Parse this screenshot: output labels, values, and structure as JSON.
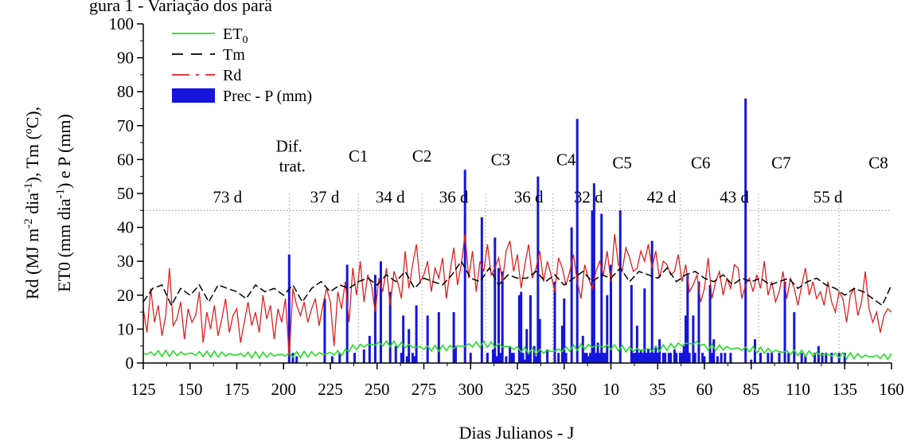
{
  "chart_data": {
    "type": "bar+line",
    "top_text": "gura 1 - Variação dos parâ",
    "xlabel": "Dias Julianos - J",
    "ylabel_line1": "Rd (MJ m",
    "ylabel_sup1": "-2",
    "ylabel_mid1": " dia",
    "ylabel_sup2": "-1",
    "ylabel_end1": "), Tm (ºC),",
    "ylabel_line2": "ET0 (mm dia",
    "ylabel_sup3": "-1",
    "ylabel_end2": ") e P (mm)",
    "ylim": [
      0,
      100
    ],
    "yticks": [
      "0",
      "10",
      "20",
      "30",
      "40",
      "50",
      "60",
      "70",
      "80",
      "90",
      "100"
    ],
    "xticks": [
      "125",
      "150",
      "175",
      "200",
      "225",
      "250",
      "275",
      "300",
      "325",
      "350",
      "10",
      "35",
      "60",
      "85",
      "110",
      "135",
      "160"
    ],
    "xticks_day_index": [
      0,
      25,
      50,
      75,
      100,
      125,
      150,
      175,
      200,
      225,
      250,
      275,
      300,
      325,
      350,
      375,
      400
    ],
    "x_range_day_index": [
      0,
      400
    ],
    "legend": {
      "placement": "top-left",
      "items": [
        {
          "label": "ET",
          "sub": "0",
          "style": "line",
          "color": "#22dd22"
        },
        {
          "label": "Tm",
          "style": "dashed",
          "color": "#000000"
        },
        {
          "label": "Rd",
          "style": "dash-red",
          "color": "#e02020"
        },
        {
          "label": "Prec - P (mm)",
          "style": "bar",
          "color": "#1515dd"
        }
      ]
    },
    "reference_line_y": 45,
    "cycle_boundaries_day_index": [
      78,
      115,
      149,
      183,
      219,
      255,
      287,
      329,
      372
    ],
    "cycle_labels": [
      {
        "text": "Dif.",
        "text2": "trat.",
        "day_index": 78,
        "y": 64
      },
      {
        "text": "C1",
        "day_index": 115,
        "y": 61
      },
      {
        "text": "C2",
        "day_index": 149,
        "y": 61
      },
      {
        "text": "C3",
        "day_index": 191,
        "y": 60
      },
      {
        "text": "C4",
        "day_index": 226,
        "y": 60
      },
      {
        "text": "C5",
        "day_index": 256,
        "y": 59
      },
      {
        "text": "C6",
        "day_index": 298,
        "y": 59
      },
      {
        "text": "C7",
        "day_index": 341,
        "y": 59
      },
      {
        "text": "C8",
        "day_index": 393,
        "y": 59
      }
    ],
    "duration_labels": [
      {
        "text": "73 d",
        "day_index": 45
      },
      {
        "text": "37 d",
        "day_index": 97
      },
      {
        "text": "34 d",
        "day_index": 132
      },
      {
        "text": "36 d",
        "day_index": 166
      },
      {
        "text": "36 d",
        "day_index": 206
      },
      {
        "text": "32 d",
        "day_index": 238
      },
      {
        "text": "42 d",
        "day_index": 277
      },
      {
        "text": "43 d",
        "day_index": 316
      },
      {
        "text": "55 d",
        "day_index": 366
      }
    ],
    "duration_label_y": 49,
    "precip_day_index": [
      78,
      80,
      82,
      97,
      101,
      105,
      109,
      113,
      118,
      121,
      124,
      127,
      132,
      135,
      138,
      139,
      141,
      142,
      144,
      145,
      146,
      152,
      158,
      166,
      167,
      172,
      175,
      181,
      184,
      187,
      188,
      189,
      190,
      191,
      192,
      194,
      196,
      197,
      198,
      201,
      202,
      203,
      204,
      205,
      206,
      207,
      209,
      210,
      211,
      212,
      216,
      220,
      222,
      224,
      225,
      226,
      229,
      232,
      235,
      236,
      237,
      238,
      239,
      240,
      241,
      242,
      243,
      244,
      245,
      246,
      247,
      248,
      250,
      255,
      261,
      262,
      263,
      264,
      265,
      266,
      267,
      268,
      269,
      270,
      271,
      272,
      273,
      274,
      275,
      276,
      278,
      279,
      281,
      282,
      284,
      285,
      287,
      288,
      289,
      290,
      291,
      292,
      294,
      295,
      297,
      299,
      300,
      303,
      304,
      305,
      307,
      309,
      311,
      314,
      322,
      325,
      327,
      330,
      334,
      336,
      340,
      343,
      345,
      348,
      352,
      354,
      359,
      361,
      363,
      365,
      368,
      372,
      375
    ],
    "precip_values": [
      32,
      3,
      2,
      19,
      2,
      3,
      29,
      3,
      4,
      8,
      26,
      30,
      21,
      5,
      3,
      14,
      2,
      10,
      3,
      2,
      17,
      14,
      15,
      15,
      5,
      57,
      3,
      43,
      3,
      4,
      37,
      2,
      28,
      3,
      27,
      2,
      5,
      3,
      3,
      20,
      21,
      3,
      1,
      10,
      3,
      20,
      5,
      2,
      55,
      13,
      4,
      24,
      3,
      11,
      19,
      3,
      40,
      72,
      8,
      3,
      3,
      2,
      3,
      45,
      53,
      3,
      6,
      3,
      44,
      3,
      3,
      20,
      29,
      45,
      23,
      3,
      3,
      11,
      3,
      4,
      3,
      22,
      3,
      4,
      3,
      36,
      3,
      5,
      3,
      7,
      3,
      3,
      3,
      3,
      4,
      3,
      3,
      3,
      5,
      14,
      26,
      3,
      14,
      3,
      24,
      3,
      2,
      23,
      3,
      7,
      2,
      3,
      3,
      3,
      78,
      1,
      7,
      3,
      3,
      3,
      3,
      24,
      3,
      15,
      3,
      2,
      3,
      5,
      3,
      3,
      3,
      3,
      3
    ],
    "tm_day_index": [
      0,
      5,
      10,
      15,
      20,
      25,
      30,
      35,
      40,
      45,
      50,
      55,
      60,
      65,
      70,
      75,
      80,
      85,
      90,
      95,
      100,
      105,
      110,
      115,
      120,
      125,
      130,
      135,
      140,
      145,
      150,
      155,
      160,
      165,
      170,
      175,
      180,
      185,
      190,
      195,
      200,
      205,
      210,
      215,
      220,
      225,
      230,
      235,
      240,
      245,
      250,
      255,
      260,
      265,
      270,
      275,
      280,
      285,
      290,
      295,
      300,
      305,
      310,
      315,
      320,
      325,
      330,
      335,
      340,
      345,
      350,
      355,
      360,
      365,
      370,
      375,
      380,
      385,
      390,
      395,
      400
    ],
    "tm_values": [
      18,
      22,
      23,
      17,
      22,
      20,
      23,
      18,
      23,
      22,
      21,
      19,
      23,
      21,
      22,
      20,
      23,
      18,
      22,
      24,
      21,
      23,
      22,
      24,
      25,
      23,
      26,
      24,
      27,
      22,
      25,
      24,
      23,
      26,
      30,
      25,
      24,
      28,
      23,
      26,
      25,
      25,
      27,
      24,
      26,
      23,
      25,
      27,
      24,
      26,
      25,
      28,
      24,
      27,
      26,
      25,
      28,
      24,
      26,
      27,
      25,
      24,
      26,
      23,
      25,
      24,
      25,
      23,
      24,
      25,
      22,
      24,
      25,
      23,
      22,
      20,
      22,
      21,
      19,
      17,
      23
    ],
    "rd_day_index": [
      0,
      2,
      4,
      6,
      8,
      10,
      12,
      14,
      16,
      18,
      20,
      22,
      24,
      26,
      28,
      30,
      32,
      34,
      36,
      38,
      40,
      42,
      44,
      46,
      48,
      50,
      52,
      54,
      56,
      58,
      60,
      62,
      64,
      66,
      68,
      70,
      72,
      74,
      76,
      78,
      80,
      82,
      84,
      86,
      88,
      90,
      92,
      94,
      96,
      98,
      100,
      102,
      104,
      106,
      108,
      110,
      112,
      114,
      116,
      118,
      120,
      122,
      124,
      126,
      128,
      130,
      132,
      134,
      136,
      138,
      140,
      142,
      144,
      146,
      148,
      150,
      152,
      154,
      156,
      158,
      160,
      162,
      164,
      166,
      168,
      170,
      172,
      174,
      176,
      178,
      180,
      182,
      184,
      186,
      188,
      190,
      192,
      194,
      196,
      198,
      200,
      202,
      204,
      206,
      208,
      210,
      212,
      214,
      216,
      218,
      220,
      222,
      224,
      226,
      228,
      230,
      232,
      234,
      236,
      238,
      240,
      242,
      244,
      246,
      248,
      250,
      252,
      254,
      256,
      258,
      260,
      262,
      264,
      266,
      268,
      270,
      272,
      274,
      276,
      278,
      280,
      282,
      284,
      286,
      288,
      290,
      292,
      294,
      296,
      298,
      300,
      302,
      304,
      306,
      308,
      310,
      312,
      314,
      316,
      318,
      320,
      322,
      324,
      326,
      328,
      330,
      332,
      334,
      336,
      338,
      340,
      342,
      344,
      346,
      348,
      350,
      352,
      354,
      356,
      358,
      360,
      362,
      364,
      366,
      368,
      370,
      372,
      374,
      376,
      378,
      380,
      382,
      384,
      386,
      388,
      390,
      392,
      394,
      396,
      398,
      400
    ],
    "rd_values": [
      16,
      9,
      22,
      12,
      17,
      8,
      14,
      28,
      11,
      13,
      18,
      7,
      16,
      12,
      14,
      21,
      6,
      15,
      10,
      17,
      8,
      13,
      19,
      9,
      14,
      16,
      6,
      12,
      18,
      11,
      15,
      9,
      20,
      13,
      17,
      7,
      16,
      12,
      19,
      2,
      22,
      17,
      14,
      18,
      12,
      16,
      19,
      11,
      17,
      22,
      18,
      5,
      21,
      16,
      24,
      12,
      28,
      20,
      30,
      18,
      26,
      23,
      15,
      25,
      21,
      28,
      17,
      27,
      24,
      19,
      33,
      22,
      29,
      35,
      24,
      26,
      30,
      21,
      28,
      25,
      31,
      19,
      27,
      34,
      23,
      29,
      38,
      25,
      33,
      21,
      30,
      27,
      35,
      26,
      28,
      31,
      24,
      33,
      36,
      27,
      32,
      22,
      29,
      35,
      25,
      28,
      33,
      24,
      30,
      26,
      21,
      31,
      28,
      23,
      27,
      32,
      24,
      19,
      29,
      25,
      22,
      27,
      30,
      26,
      33,
      24,
      38,
      29,
      27,
      34,
      31,
      27,
      28,
      33,
      30,
      35,
      28,
      33,
      25,
      30,
      29,
      26,
      27,
      32,
      24,
      29,
      21,
      23,
      26,
      18,
      22,
      31,
      19,
      24,
      27,
      20,
      25,
      22,
      29,
      28,
      19,
      23,
      25,
      21,
      26,
      22,
      30,
      20,
      24,
      18,
      21,
      27,
      19,
      25,
      22,
      17,
      23,
      28,
      20,
      24,
      19,
      21,
      17,
      24,
      18,
      15,
      21,
      19,
      12,
      20,
      22,
      14,
      18,
      27,
      16,
      12,
      15,
      9,
      14,
      16,
      15
    ]
  }
}
